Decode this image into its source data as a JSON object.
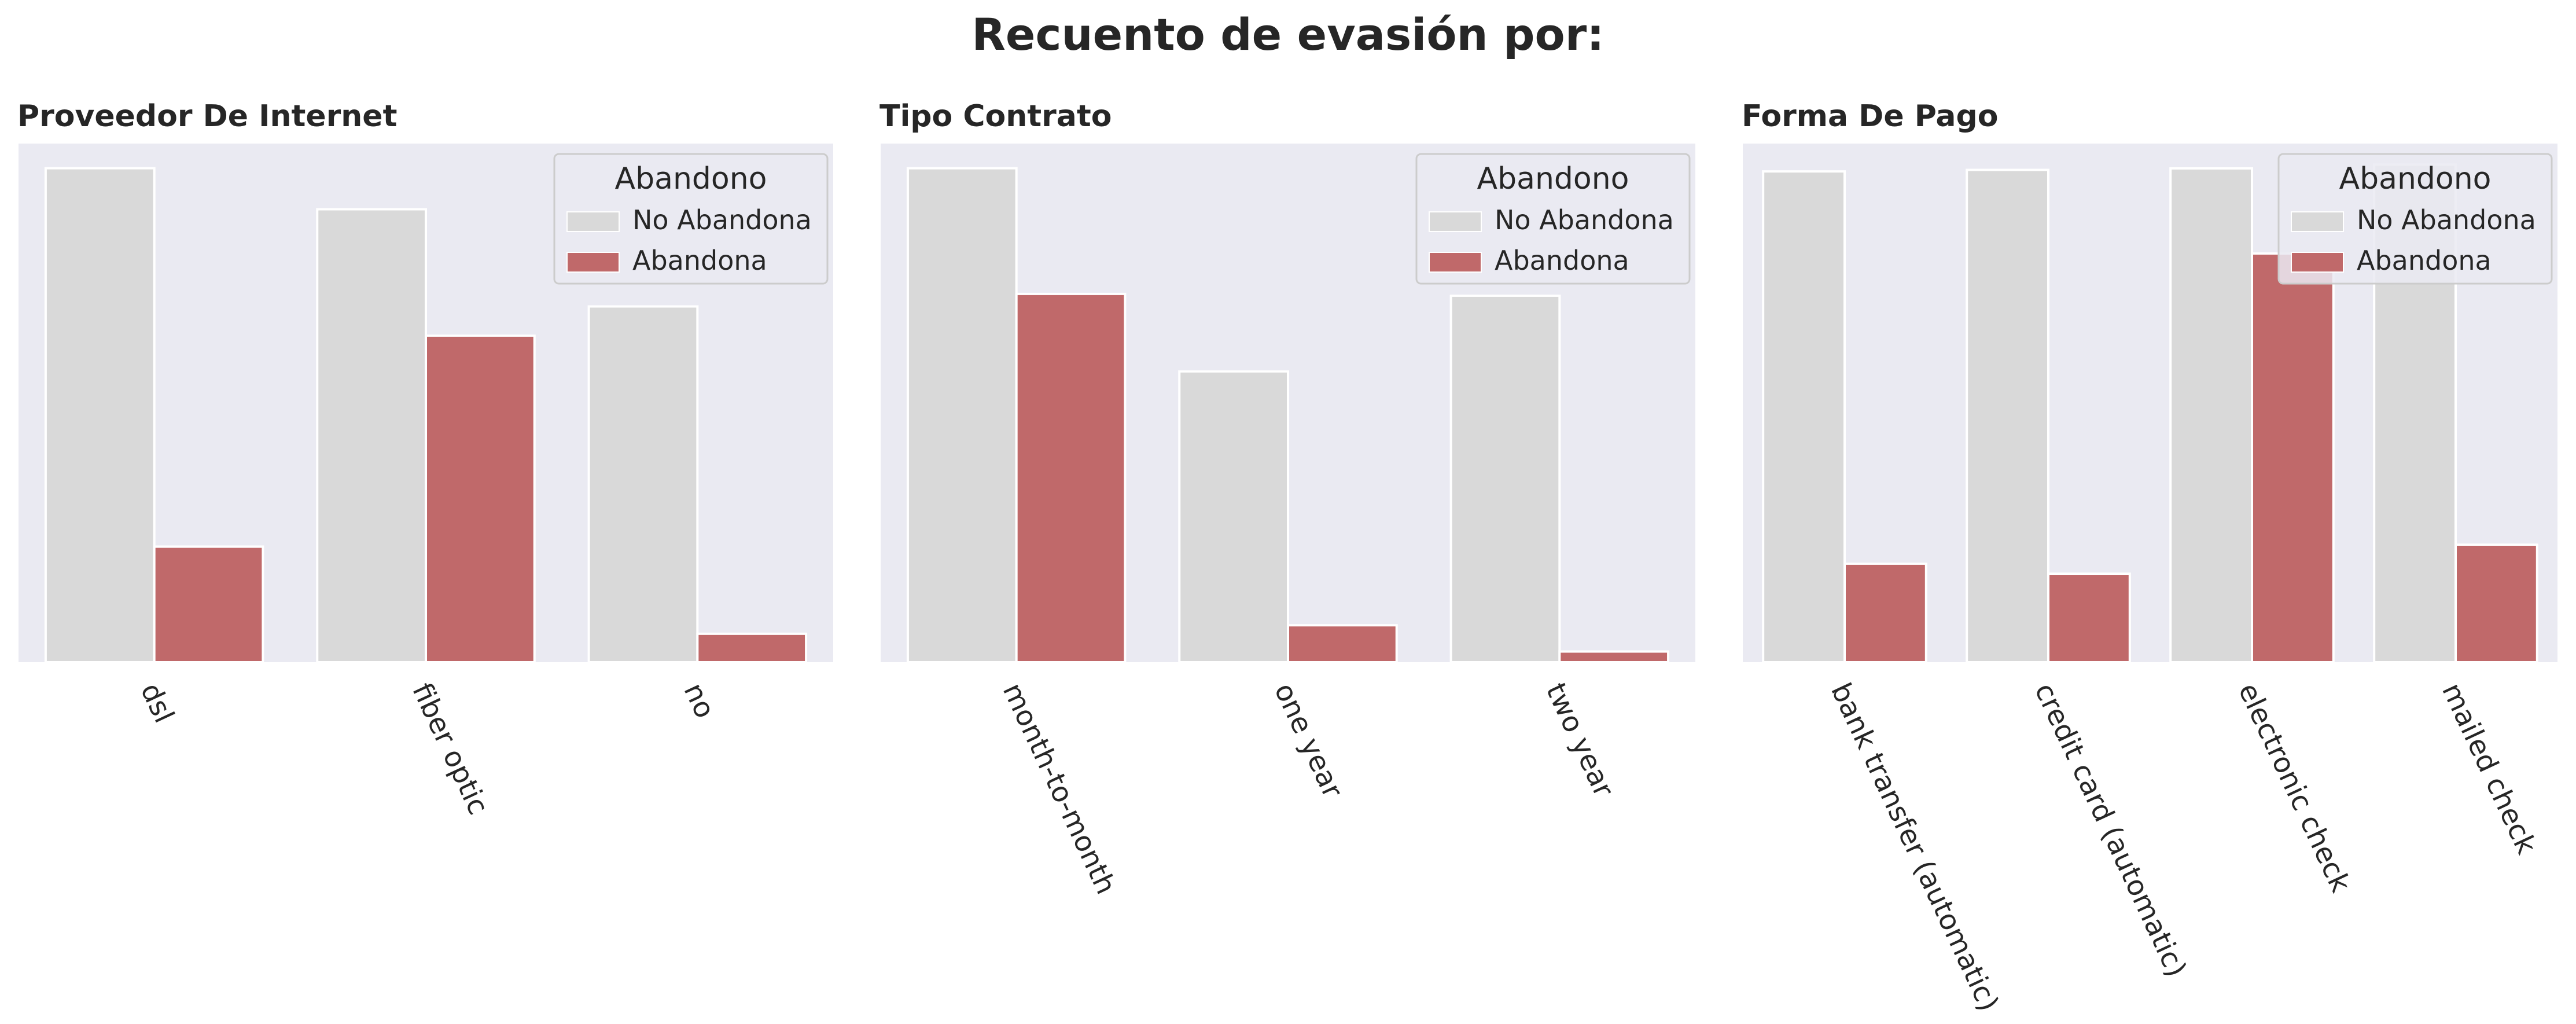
{
  "suptitle": "Recuento de evasión por:",
  "colors": {
    "background": "#ffffff",
    "plot_bg": "#eaeaf2",
    "no_abandona": "#d9d9d9",
    "abandona": "#c0696a",
    "bar_edge": "#ffffff"
  },
  "chart_data": [
    {
      "type": "bar",
      "title": "Proveedor De Internet",
      "xlabel": "",
      "ylabel": "",
      "categories": [
        "dsl",
        "fiber optic",
        "no"
      ],
      "series": [
        {
          "name": "No Abandona",
          "values": [
            1962,
            1799,
            1413
          ]
        },
        {
          "name": "Abandona",
          "values": [
            459,
            1297,
            113
          ]
        }
      ],
      "ylim": [
        0,
        2060
      ],
      "legend": {
        "title": "Abandono",
        "placement": "upper right"
      },
      "grid": false
    },
    {
      "type": "bar",
      "title": "Tipo Contrato",
      "xlabel": "",
      "ylabel": "",
      "categories": [
        "month-to-month",
        "one year",
        "two year"
      ],
      "series": [
        {
          "name": "No Abandona",
          "values": [
            2220,
            1307,
            1647
          ]
        },
        {
          "name": "Abandona",
          "values": [
            1655,
            166,
            48
          ]
        }
      ],
      "ylim": [
        0,
        2331
      ],
      "legend": {
        "title": "Abandono",
        "placement": "upper right"
      },
      "grid": false
    },
    {
      "type": "bar",
      "title": "Forma De Pago",
      "xlabel": "",
      "ylabel": "",
      "categories": [
        "bank transfer (automatic)",
        "credit card (automatic)",
        "electronic check",
        "mailed check"
      ],
      "series": [
        {
          "name": "No Abandona",
          "values": [
            1286,
            1290,
            1294,
            1304
          ]
        },
        {
          "name": "Abandona",
          "values": [
            258,
            232,
            1071,
            308
          ]
        }
      ],
      "ylim": [
        0,
        1359
      ],
      "legend": {
        "title": "Abandono",
        "placement": "upper right"
      },
      "grid": false
    }
  ]
}
